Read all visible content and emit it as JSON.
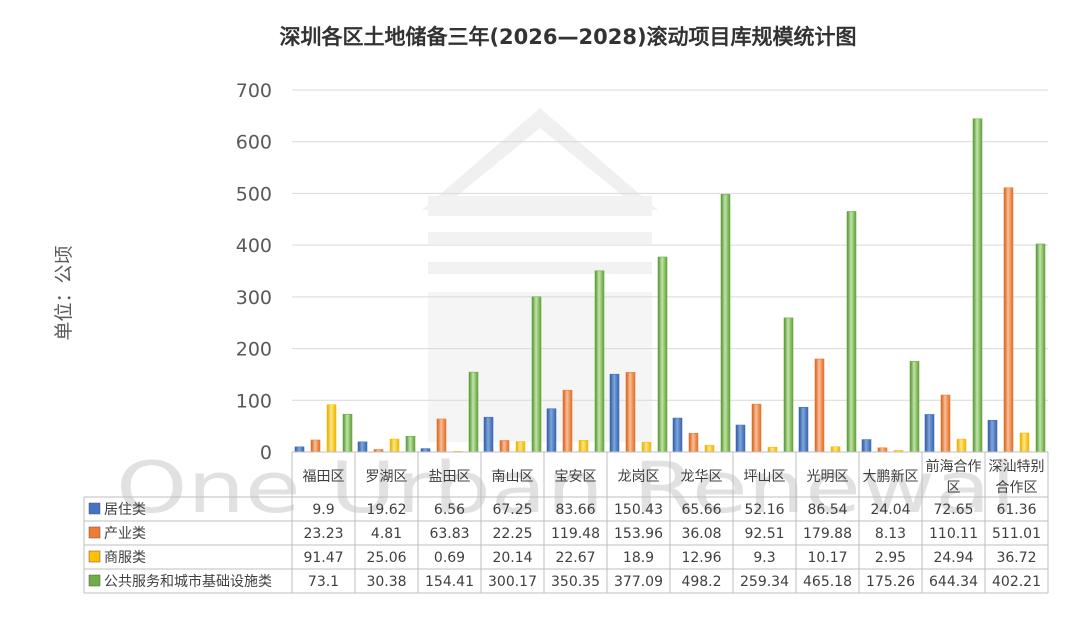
{
  "chart_data": {
    "type": "bar",
    "title": "深圳各区土地储备三年(2026—2028)滚动项目库规模统计图",
    "ylabel": "单位：公顷",
    "ylim": [
      0,
      700
    ],
    "yticks": [
      0,
      100,
      200,
      300,
      400,
      500,
      600,
      700
    ],
    "grid": true,
    "categories": [
      [
        "福田区"
      ],
      [
        "罗湖区"
      ],
      [
        "盐田区"
      ],
      [
        "南山区"
      ],
      [
        "宝安区"
      ],
      [
        "龙岗区"
      ],
      [
        "龙华区"
      ],
      [
        "坪山区"
      ],
      [
        "光明区"
      ],
      [
        "大鹏新区"
      ],
      [
        "前海合作",
        "区"
      ],
      [
        "深汕特别",
        "合作区"
      ]
    ],
    "series": [
      {
        "name": "居住类",
        "color": "#4472C4",
        "values": [
          9.9,
          19.62,
          6.56,
          67.25,
          83.66,
          150.43,
          65.66,
          52.16,
          86.54,
          24.04,
          72.65,
          61.36
        ],
        "labels": [
          "9.9",
          "19.62",
          "6.56",
          "67.25",
          "83.66",
          "150.43",
          "65.66",
          "52.16",
          "86.54",
          "24.04",
          "72.65",
          "61.36"
        ]
      },
      {
        "name": "产业类",
        "color": "#ED7D31",
        "values": [
          23.23,
          4.81,
          63.83,
          22.25,
          119.48,
          153.96,
          36.08,
          92.51,
          179.88,
          8.13,
          110.11,
          511.01
        ],
        "labels": [
          "23.23",
          "4.81",
          "63.83",
          "22.25",
          "119.48",
          "153.96",
          "36.08",
          "92.51",
          "179.88",
          "8.13",
          "110.11",
          "511.01"
        ]
      },
      {
        "name": "商服类",
        "color": "#FFC000",
        "values": [
          91.47,
          25.06,
          0.69,
          20.14,
          22.67,
          18.9,
          12.96,
          9.3,
          10.17,
          2.95,
          24.94,
          36.72
        ],
        "labels": [
          "91.47",
          "25.06",
          "0.69",
          "20.14",
          "22.67",
          "18.9",
          "12.96",
          "9.3",
          "10.17",
          "2.95",
          "24.94",
          "36.72"
        ]
      },
      {
        "name": "公共服务和城市基础设施类",
        "color": "#70AD47",
        "values": [
          73.1,
          30.38,
          154.41,
          300.17,
          350.35,
          377.09,
          498.2,
          259.34,
          465.18,
          175.26,
          644.34,
          402.21
        ],
        "labels": [
          "73.1",
          "30.38",
          "154.41",
          "300.17",
          "350.35",
          "377.09",
          "498.2",
          "259.34",
          "465.18",
          "175.26",
          "644.34",
          "402.21"
        ]
      }
    ],
    "watermark": "One Urban Renewal"
  }
}
